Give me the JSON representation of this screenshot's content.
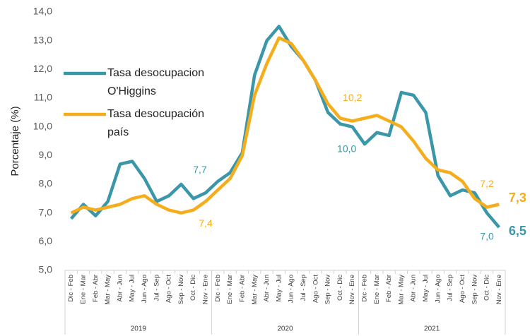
{
  "chart_data": {
    "type": "line",
    "y_label": "Porcentaje (%)",
    "categories": [
      "Dic - Feb",
      "Ene - Mar",
      "Feb - Abr",
      "Mar - May",
      "Abr - Jun",
      "May - Jul",
      "Jun - Ago",
      "Jul - Sep",
      "Ago - Oct",
      "Sep - Nov",
      "Oct - Dic",
      "Nov - Ene",
      "Dic - Feb",
      "Ene - Mar",
      "Feb - Abr",
      "Mar - May",
      "Abr - Jun",
      "May - Jul",
      "Jun - Ago",
      "Jul - Sep",
      "Ago - Oct",
      "Sep - Nov",
      "Oct - Dic",
      "Nov - Ene",
      "Dic - Feb",
      "Ene - Mar",
      "Feb - Abr",
      "Mar - May",
      "Abr - Jun",
      "May - Jul",
      "Jun - Ago",
      "Jul - Sep",
      "Ago - Oct",
      "Sep - Nov",
      "Oct - Dic",
      "Nov - Ene"
    ],
    "groups": [
      {
        "label": "2019",
        "size": 12
      },
      {
        "label": "2020",
        "size": 12
      },
      {
        "label": "2021",
        "size": 12
      }
    ],
    "series": [
      {
        "name": "Tasa desocupacion O'Higgins",
        "color": "#3a97a9",
        "values": [
          6.8,
          7.3,
          6.9,
          7.4,
          8.7,
          8.8,
          8.2,
          7.4,
          7.6,
          8.0,
          7.5,
          7.7,
          8.1,
          8.4,
          9.1,
          11.8,
          13.0,
          13.5,
          12.8,
          12.3,
          11.6,
          10.5,
          10.1,
          10.0,
          9.4,
          9.8,
          9.7,
          11.2,
          11.1,
          10.5,
          8.3,
          7.6,
          7.8,
          7.7,
          7.0,
          6.5
        ],
        "value_labels": [
          null,
          null,
          null,
          null,
          null,
          null,
          null,
          null,
          null,
          null,
          null,
          "7,7",
          null,
          null,
          null,
          null,
          null,
          null,
          null,
          null,
          null,
          null,
          null,
          "10,0",
          null,
          null,
          null,
          null,
          null,
          null,
          null,
          null,
          null,
          null,
          "7,0",
          "6,5"
        ]
      },
      {
        "name": "Tasa desocupación país",
        "color": "#f5ad1c",
        "values": [
          7.0,
          7.2,
          7.1,
          7.2,
          7.3,
          7.5,
          7.6,
          7.3,
          7.1,
          7.0,
          7.1,
          7.4,
          7.8,
          8.2,
          9.0,
          11.1,
          12.2,
          13.1,
          12.9,
          12.3,
          11.6,
          10.8,
          10.3,
          10.2,
          10.3,
          10.4,
          10.2,
          10.0,
          9.5,
          8.9,
          8.5,
          8.4,
          8.1,
          7.5,
          7.2,
          7.3
        ],
        "value_labels": [
          null,
          null,
          null,
          null,
          null,
          null,
          null,
          null,
          null,
          null,
          null,
          "7,4",
          null,
          null,
          null,
          null,
          null,
          null,
          null,
          null,
          null,
          null,
          null,
          "10,2",
          null,
          null,
          null,
          null,
          null,
          null,
          null,
          null,
          null,
          null,
          "7,2",
          "7,3"
        ]
      }
    ],
    "ylim": [
      5,
      14
    ],
    "yticks": [
      {
        "value": 5,
        "label": "5,0"
      },
      {
        "value": 6,
        "label": "6,0"
      },
      {
        "value": 7,
        "label": "7,0"
      },
      {
        "value": 8,
        "label": "8,0"
      },
      {
        "value": 9,
        "label": "9,0"
      },
      {
        "value": 10,
        "label": "10,0"
      },
      {
        "value": 11,
        "label": "11,0"
      },
      {
        "value": 12,
        "label": "12,0"
      },
      {
        "value": 13,
        "label": "13,0"
      },
      {
        "value": 14,
        "label": "14,0"
      }
    ],
    "grid": false
  }
}
